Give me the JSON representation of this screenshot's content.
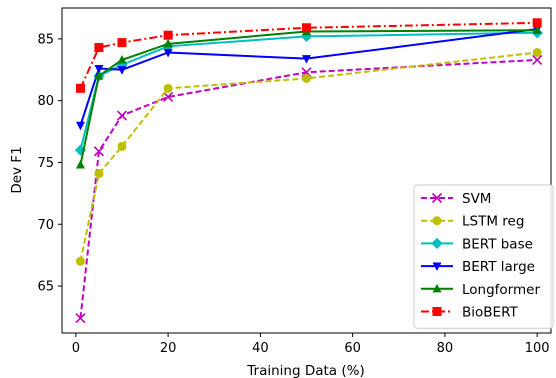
{
  "chart_data": {
    "type": "line",
    "xlabel": "Training Data (%)",
    "ylabel": "Dev F1",
    "xlim": [
      -3,
      103
    ],
    "ylim": [
      61.2,
      87.5
    ],
    "xticks": [
      0,
      20,
      40,
      60,
      80,
      100
    ],
    "yticks": [
      65,
      70,
      75,
      80,
      85
    ],
    "grid": false,
    "legend_position": "lower-right",
    "x": [
      1,
      5,
      10,
      20,
      50,
      100
    ],
    "series": [
      {
        "name": "SVM",
        "color": "#bf00bf",
        "dash": "dashed",
        "marker": "x",
        "values": [
          62.4,
          75.9,
          78.8,
          80.3,
          82.3,
          83.3
        ]
      },
      {
        "name": "LSTM reg",
        "color": "#bfbf00",
        "dash": "dashed",
        "marker": "circle",
        "values": [
          67.0,
          74.1,
          76.3,
          81.0,
          81.8,
          83.9
        ]
      },
      {
        "name": "BERT base",
        "color": "#00bfbf",
        "dash": "solid",
        "marker": "diamond",
        "values": [
          76.0,
          82.0,
          82.9,
          84.4,
          85.2,
          85.5
        ]
      },
      {
        "name": "BERT large",
        "color": "#0000ff",
        "dash": "solid",
        "marker": "triangle-down",
        "values": [
          78.0,
          82.6,
          82.5,
          83.9,
          83.4,
          85.8
        ]
      },
      {
        "name": "Longformer",
        "color": "#008000",
        "dash": "solid",
        "marker": "triangle-up",
        "values": [
          74.8,
          82.0,
          83.3,
          84.6,
          85.6,
          85.7
        ]
      },
      {
        "name": "BioBERT",
        "color": "#ff0000",
        "dash": "dashdot",
        "marker": "square",
        "values": [
          81.0,
          84.3,
          84.7,
          85.3,
          85.9,
          86.3
        ]
      }
    ]
  }
}
